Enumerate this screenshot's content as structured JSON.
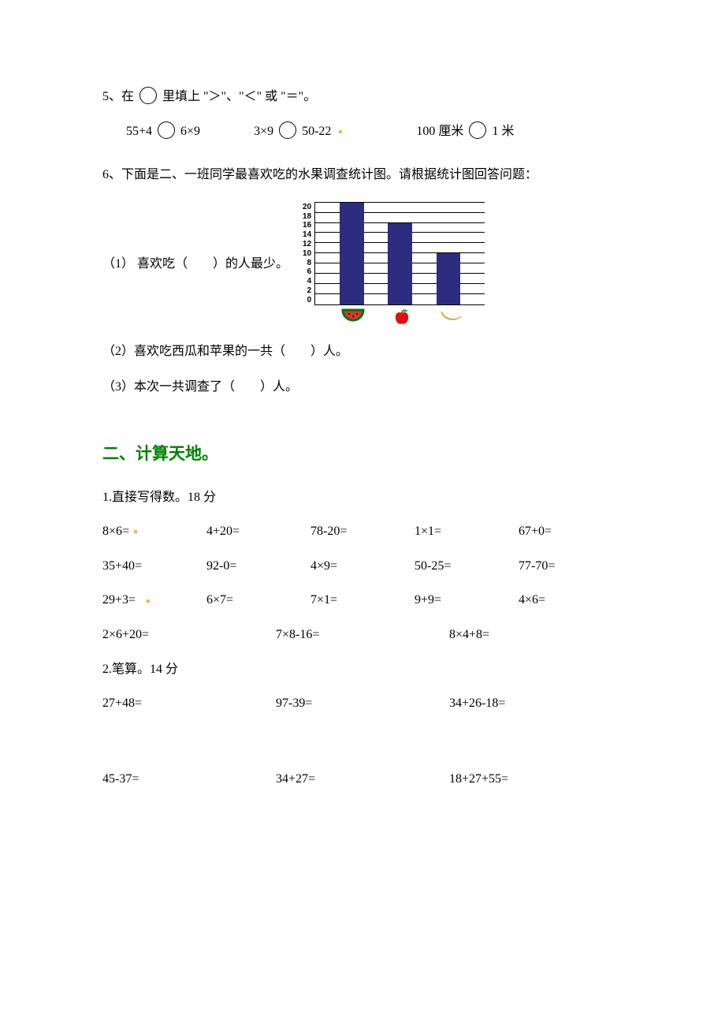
{
  "q5": {
    "prompt_pre": "5、在",
    "prompt_post": "里填上 \"＞\"、\"＜\" 或 \"＝\"。",
    "item1_left": "55+4",
    "item1_right": "6×9",
    "item2_left": "3×9",
    "item2_right": "50-22",
    "item3_left": "100 厘米",
    "item3_right": "1 米"
  },
  "q6": {
    "intro": "6、下面是二、一班同学最喜欢吃的水果调查统计图。请根据统计图回答问题：",
    "sub1": "（1） 喜欢吃（　　）的人最少。",
    "sub2": "（2）喜欢吃西瓜和苹果的一共（　　）人。",
    "sub3": "（3）本次一共调查了（　　）人。",
    "chart": {
      "type": "bar",
      "y_max": 20,
      "y_ticks": [
        "20",
        "18",
        "16",
        "14",
        "12",
        "10",
        "8",
        "6",
        "4",
        "2",
        "0"
      ],
      "bar_color": "#2b2d7f",
      "bars": [
        {
          "value": 0,
          "pct": 0
        },
        {
          "value": 20,
          "pct": 100
        },
        {
          "value": 0,
          "pct": 0
        },
        {
          "value": 16,
          "pct": 80
        },
        {
          "value": 0,
          "pct": 0
        },
        {
          "value": 10,
          "pct": 50
        },
        {
          "value": 0,
          "pct": 0
        }
      ],
      "icons": [
        "watermelon",
        "apple",
        "banana"
      ]
    }
  },
  "section2": {
    "title": "二、计算天地。",
    "p1_intro": "1.直接写得数。18 分",
    "row1": [
      "8×6=",
      "4+20=",
      "78-20=",
      "1×1=",
      "67+0="
    ],
    "row2": [
      "35+40=",
      "92-0=",
      "4×9=",
      "50-25=",
      "77-70="
    ],
    "row3": [
      "29+3=",
      "6×7=",
      "7×1=",
      "9+9=",
      "4×6="
    ],
    "row4": [
      "2×6+20=",
      "7×8-16=",
      "8×4+8="
    ],
    "p2_intro": "2.笔算。14 分",
    "wrow1": [
      "27+48=",
      "97-39=",
      "34+26-18="
    ],
    "wrow2": [
      "45-37=",
      "34+27=",
      "18+27+55="
    ]
  }
}
